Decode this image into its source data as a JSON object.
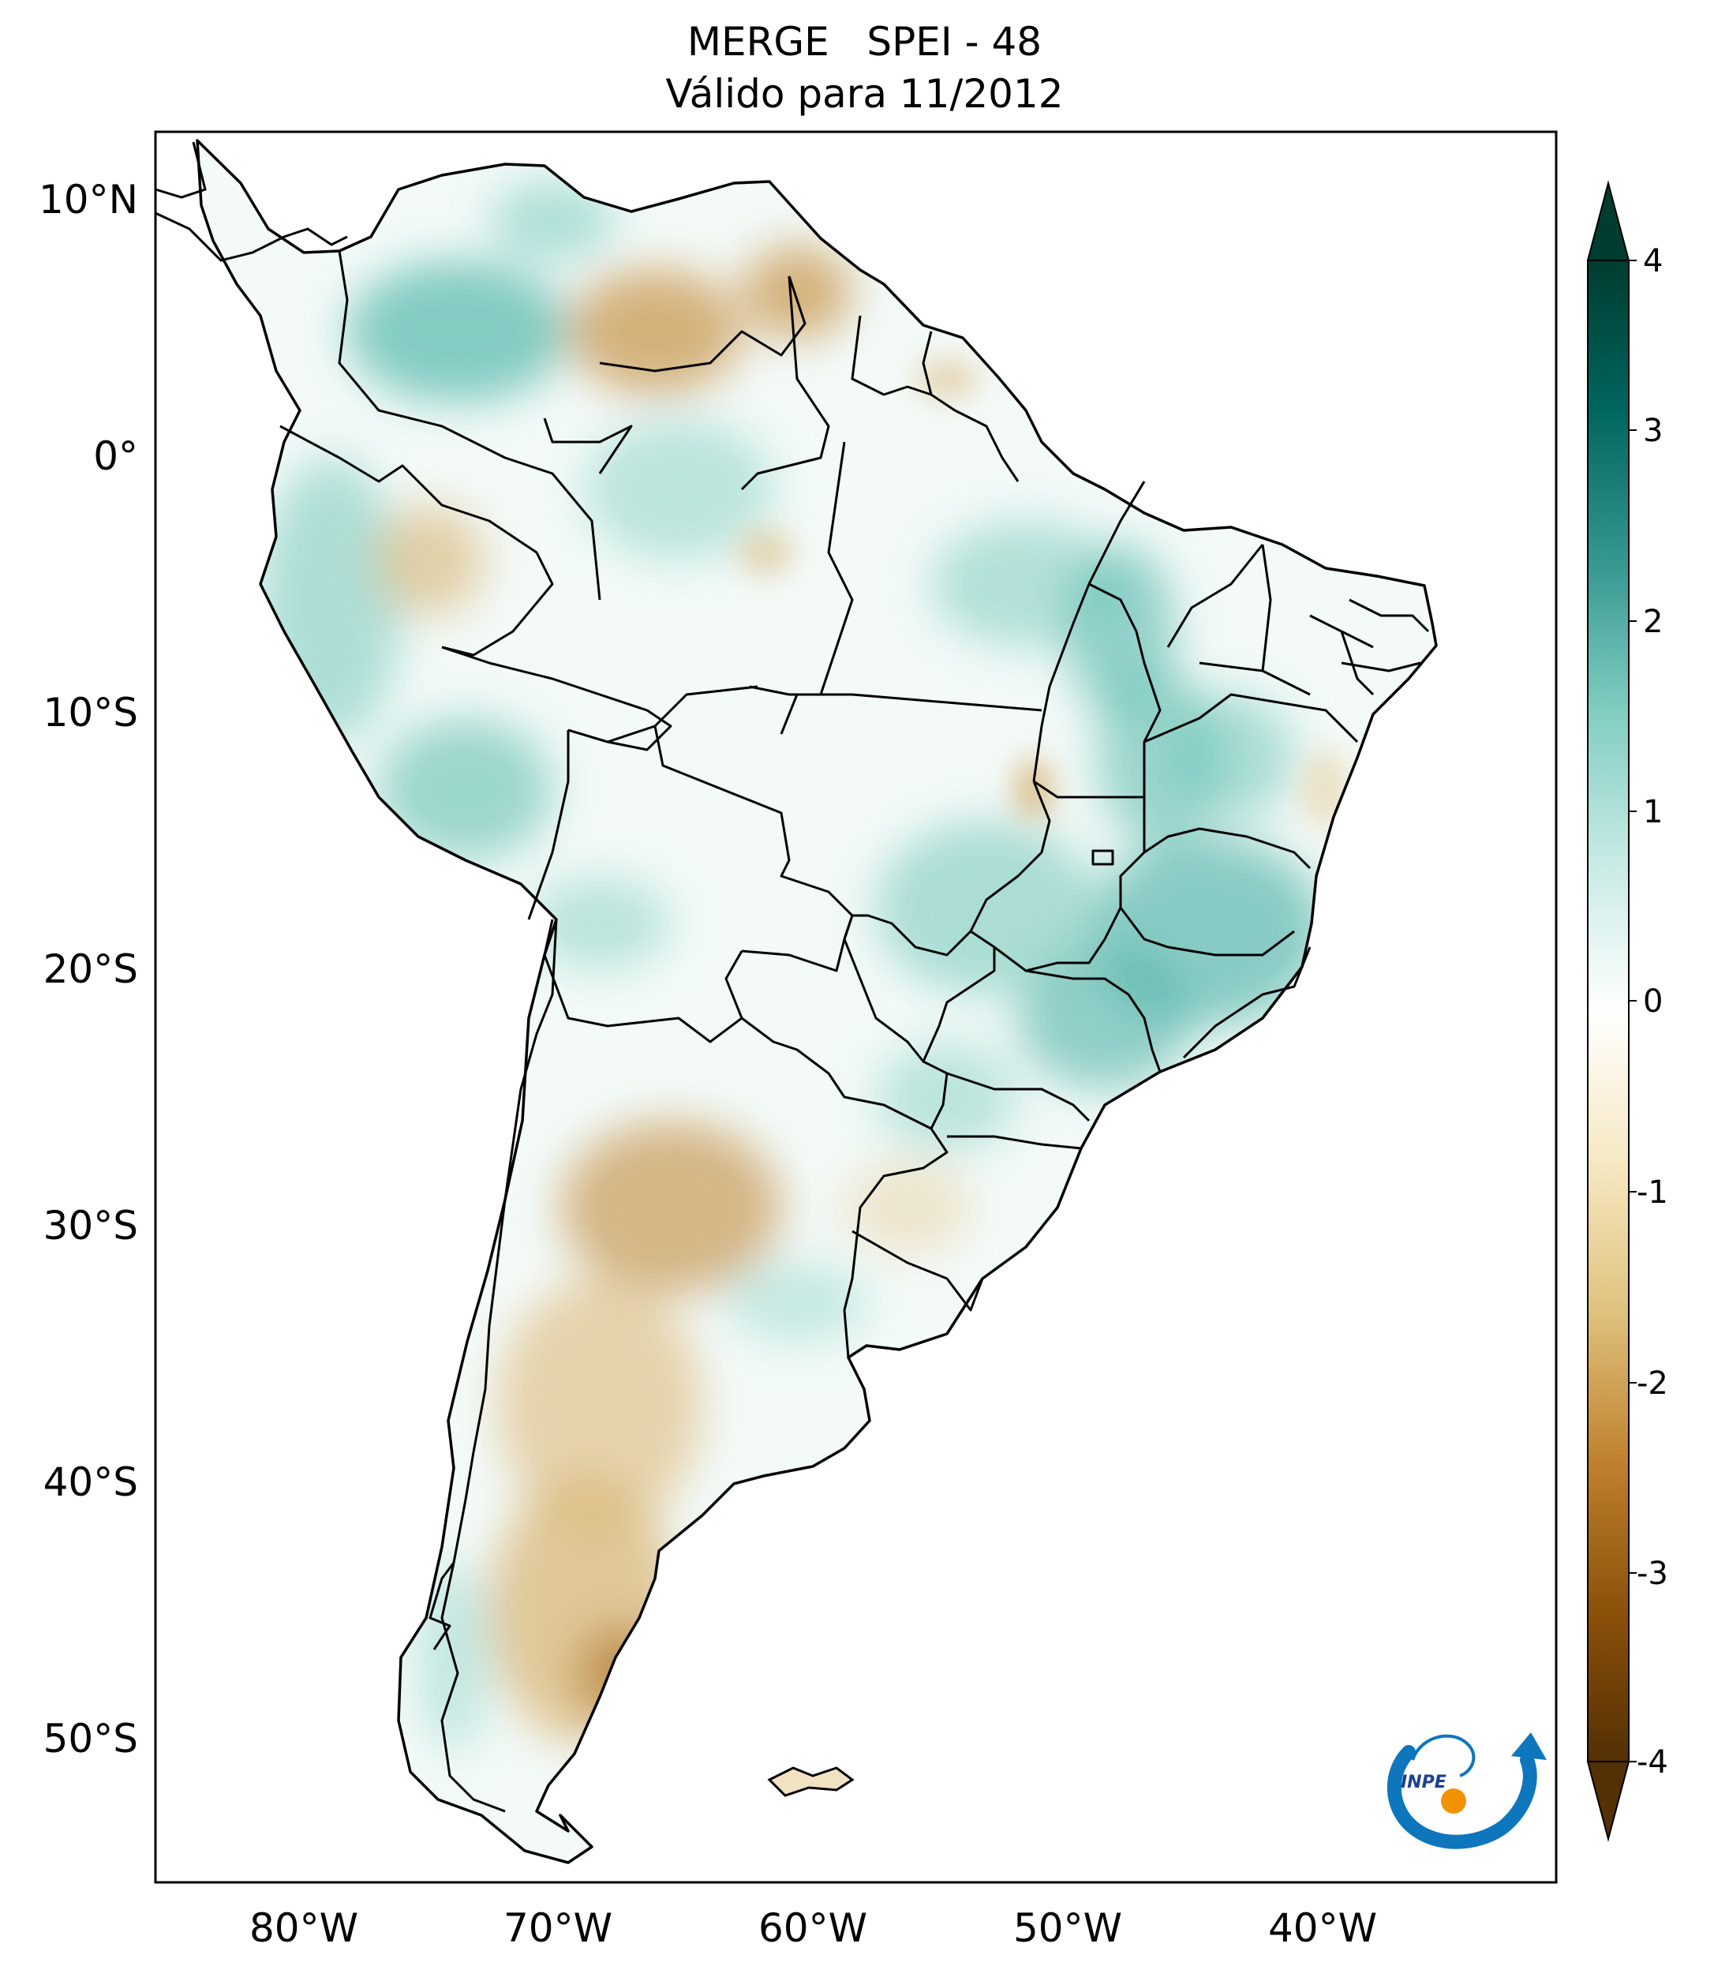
{
  "title": {
    "line1": "MERGE   SPEI - 48",
    "line2": "Válido para 11/2012"
  },
  "axes": {
    "lat_ticks": [
      "10°N",
      "0°",
      "10°S",
      "20°S",
      "30°S",
      "40°S",
      "50°S"
    ],
    "lon_ticks": [
      "80°W",
      "70°W",
      "60°W",
      "50°W",
      "40°W"
    ],
    "lon_range": [
      -85,
      -30
    ],
    "lat_range": [
      -56,
      13
    ]
  },
  "colorbar": {
    "ticks": [
      "4",
      "3",
      "2",
      "1",
      "0",
      "-1",
      "-2",
      "-3",
      "-4"
    ],
    "range": [
      -4,
      4
    ],
    "extend": "both",
    "colormap": "BrBG",
    "colors": [
      "#543005",
      "#8c510a",
      "#bf812d",
      "#dfc27d",
      "#f6e8c3",
      "#ffffff",
      "#c7eae5",
      "#80cdc1",
      "#35978f",
      "#01665e",
      "#003c30"
    ]
  },
  "map": {
    "region": "South America",
    "variable": "SPEI - 48",
    "land_color": "#ffffff",
    "border_color": "#000000"
  },
  "logo": {
    "text": "INPE"
  }
}
